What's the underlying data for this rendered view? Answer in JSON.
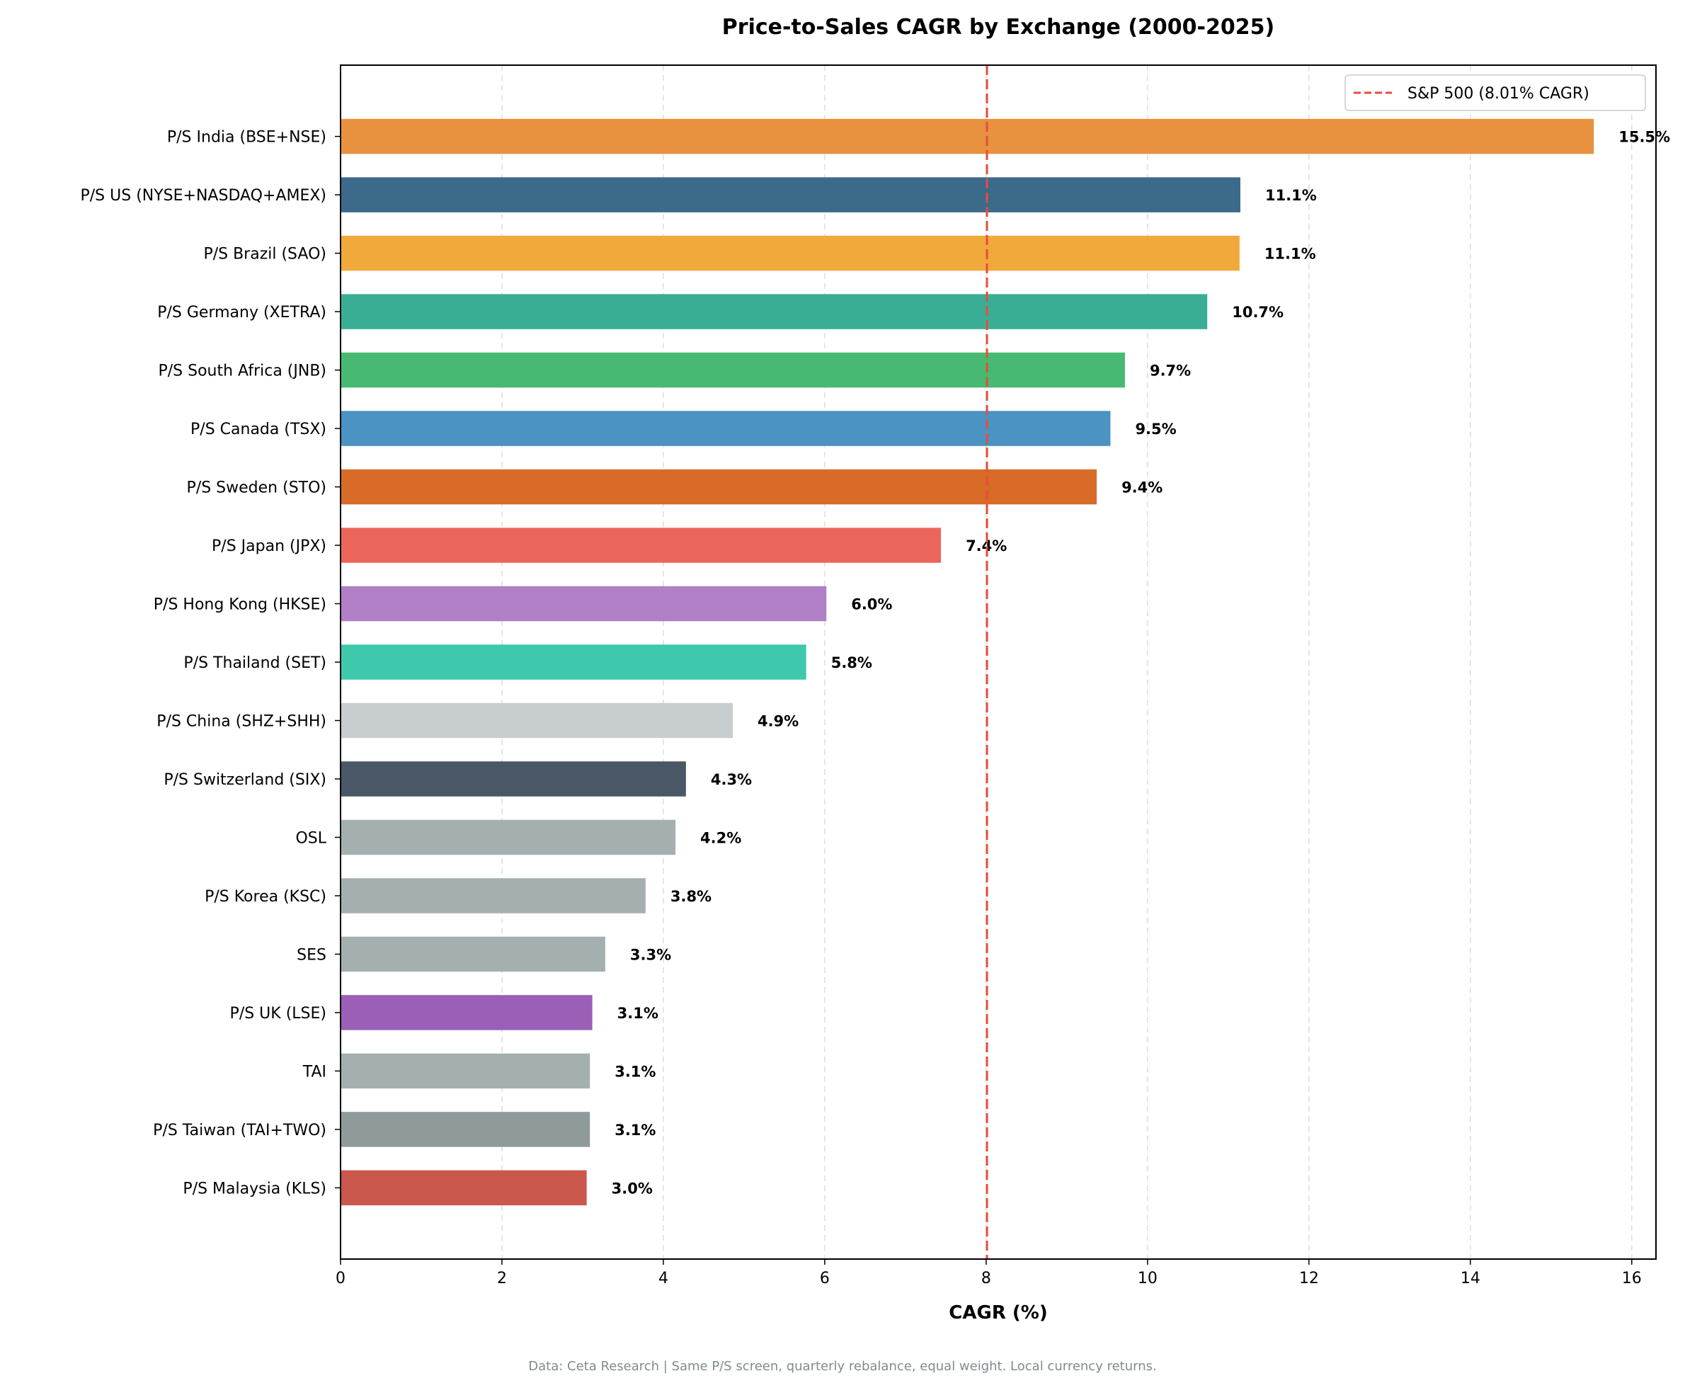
{
  "chart_data": {
    "type": "bar",
    "orientation": "horizontal",
    "title": "Price-to-Sales CAGR by Exchange (2000-2025)",
    "xlabel": "CAGR (%)",
    "ylabel": "",
    "xlim": [
      0,
      16.3
    ],
    "xticks": [
      "0",
      "2",
      "4",
      "6",
      "8",
      "10",
      "12",
      "14",
      "16"
    ],
    "grid": "x-dashed",
    "legend_position": "top-right",
    "categories": [
      "P/S India (BSE+NSE)",
      "P/S US (NYSE+NASDAQ+AMEX)",
      "P/S Brazil (SAO)",
      "P/S Germany (XETRA)",
      "P/S South Africa (JNB)",
      "P/S Canada (TSX)",
      "P/S Sweden (STO)",
      "P/S Japan (JPX)",
      "P/S Hong Kong (HKSE)",
      "P/S Thailand (SET)",
      "P/S China (SHZ+SHH)",
      "P/S Switzerland (SIX)",
      "OSL",
      "P/S Korea (KSC)",
      "SES",
      "P/S UK (LSE)",
      "TAI",
      "P/S Taiwan (TAI+TWO)",
      "P/S Malaysia (KLS)"
    ],
    "values": [
      15.53,
      11.15,
      11.14,
      10.74,
      9.72,
      9.54,
      9.37,
      7.44,
      6.02,
      5.77,
      4.86,
      4.28,
      4.15,
      3.78,
      3.28,
      3.12,
      3.09,
      3.09,
      3.05
    ],
    "labels": [
      "15.5%",
      "11.1%",
      "11.1%",
      "10.7%",
      "9.7%",
      "9.5%",
      "9.4%",
      "7.4%",
      "6.0%",
      "5.8%",
      "4.9%",
      "4.3%",
      "4.2%",
      "3.8%",
      "3.3%",
      "3.1%",
      "3.1%",
      "3.1%",
      "3.0%"
    ],
    "colors": [
      "#e8913f",
      "#3b6a8a",
      "#f2a93b",
      "#3aae95",
      "#48b973",
      "#4a93c3",
      "#d86b27",
      "#eb665a",
      "#b17fc6",
      "#3ec8ac",
      "#c8cdd0",
      "#4a5766",
      "#a4b0b0",
      "#a4b0b0",
      "#a4b0b0",
      "#9b5fb8",
      "#a4b0b0",
      "#8f9b9b",
      "#c9574b"
    ],
    "reference_line": {
      "value": 8.01,
      "label": "S&P 500 (8.01% CAGR)",
      "color": "#e74c3c",
      "style": "dashed"
    }
  },
  "footnote": "Data: Ceta Research | Same P/S screen, quarterly rebalance, equal weight. Local currency returns."
}
